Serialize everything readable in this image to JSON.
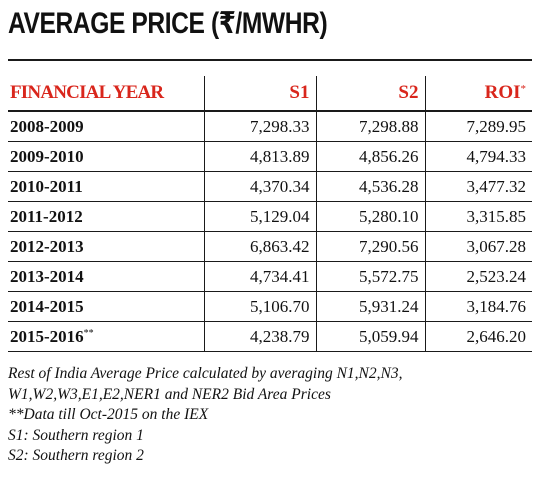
{
  "title": "AVERAGE PRICE  (₹/MWHR)",
  "colors": {
    "header_text": "#d9261c",
    "body_text": "#111111",
    "rule": "#1a1a1a"
  },
  "table": {
    "columns": [
      "FINANCIAL YEAR",
      "S1",
      "S2",
      "ROI"
    ],
    "roi_marker": "*",
    "rows": [
      {
        "year": "2008-2009",
        "marker": "",
        "s1": "7,298.33",
        "s2": "7,298.88",
        "roi": "7,289.95"
      },
      {
        "year": "2009-2010",
        "marker": "",
        "s1": "4,813.89",
        "s2": "4,856.26",
        "roi": "4,794.33"
      },
      {
        "year": "2010-2011",
        "marker": "",
        "s1": "4,370.34",
        "s2": "4,536.28",
        "roi": "3,477.32"
      },
      {
        "year": "2011-2012",
        "marker": "",
        "s1": "5,129.04",
        "s2": "5,280.10",
        "roi": "3,315.85"
      },
      {
        "year": "2012-2013",
        "marker": "",
        "s1": "6,863.42",
        "s2": "7,290.56",
        "roi": "3,067.28"
      },
      {
        "year": "2013-2014",
        "marker": "",
        "s1": "4,734.41",
        "s2": "5,572.75",
        "roi": "2,523.24"
      },
      {
        "year": "2014-2015",
        "marker": "",
        "s1": "5,106.70",
        "s2": "5,931.24",
        "roi": "3,184.76"
      },
      {
        "year": "2015-2016",
        "marker": "**",
        "s1": "4,238.79",
        "s2": "5,059.94",
        "roi": "2,646.20"
      }
    ]
  },
  "notes": [
    "Rest of India Average Price calculated by averaging N1,N2,N3,",
    "W1,W2,W3,E1,E2,NER1 and NER2 Bid Area Prices",
    "**Data till Oct-2015 on the IEX",
    "S1: Southern region 1",
    "S2: Southern region 2"
  ]
}
